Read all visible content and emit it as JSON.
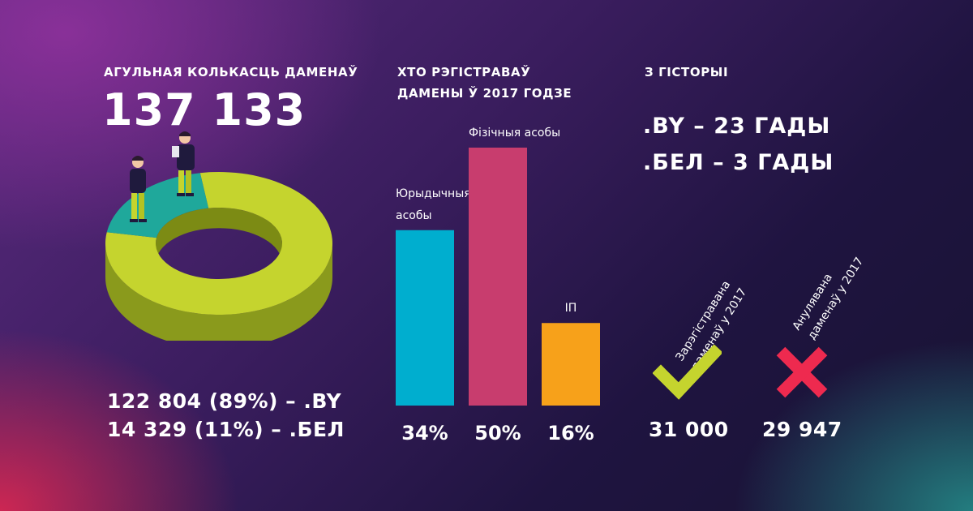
{
  "total": {
    "heading": "АГУЛЬНАЯ КОЛЬКАСЦЬ ДАМЕНАЎ",
    "value": "137 133",
    "line_by": "122 804 (89%) – .BY",
    "line_bel": "14 329 (11%) – .БЕЛ"
  },
  "registrants": {
    "heading_line1": "ХТО РЭГІСТРАВАЎ",
    "heading_line2": "ДАМЕНЫ Ў 2017 ГОДЗЕ"
  },
  "history": {
    "heading": "З ГІСТОРЫІ",
    "line_by": ".BY – 23 ГАДЫ",
    "line_bel": ".БЕЛ – 3 ГАДЫ"
  },
  "registered": {
    "label_line1": "Зарэгістравана",
    "label_line2": "даменаў у 2017",
    "value": "31 000",
    "icon": "check-icon",
    "color": "#c5d42e"
  },
  "annulled": {
    "label_line1": "Анулявана",
    "label_line2": "даменаў у 2017",
    "value": "29 947",
    "icon": "cross-icon",
    "color": "#ee2a4f"
  },
  "chart_data": [
    {
      "type": "pie",
      "categories": [
        ".BY",
        ".БЕЛ"
      ],
      "values": [
        122804,
        14329
      ],
      "colors": [
        "#c5d42e",
        "#1fa89b"
      ]
    },
    {
      "type": "bar",
      "categories": [
        "Юрыдычныя асобы",
        "Фізічныя асобы",
        "ІП"
      ],
      "label_lines": [
        [
          "Юрыдычныя",
          "асобы"
        ],
        [
          "Фізічныя асобы"
        ],
        [
          "ІП"
        ]
      ],
      "values": [
        34,
        50,
        16
      ],
      "value_labels": [
        "34%",
        "50%",
        "16%"
      ],
      "colors": [
        "#00aecf",
        "#c83d6e",
        "#f7a11a"
      ],
      "ylim": [
        0,
        50
      ]
    }
  ]
}
